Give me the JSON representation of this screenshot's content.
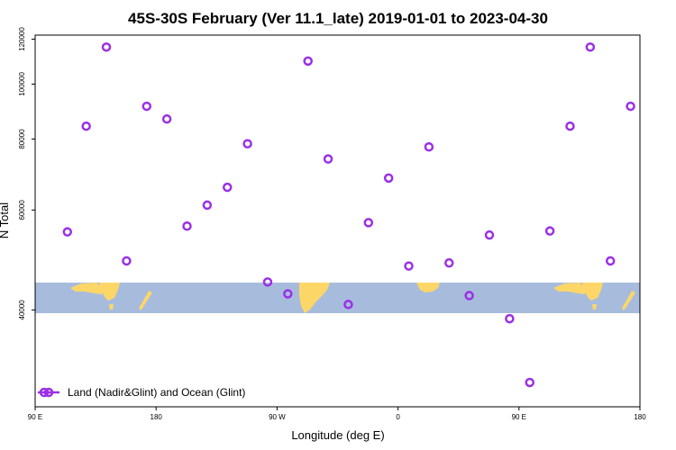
{
  "chart_data": {
    "type": "scatter",
    "title": "45S-30S February (Ver 11.1_late)   2019-01-01 to 2023-04-30",
    "xlabel": "Longitude (deg E)",
    "ylabel": "N Total",
    "x_ticks": [
      {
        "value": 90,
        "label": "90 E"
      },
      {
        "value": 180,
        "label": "180"
      },
      {
        "value": 270,
        "label": "90 W"
      },
      {
        "value": 360,
        "label": "0"
      },
      {
        "value": 450,
        "label": "90 E"
      },
      {
        "value": 540,
        "label": "180"
      }
    ],
    "y_ticks": [
      {
        "value": 40000,
        "label": "40000"
      },
      {
        "value": 60000,
        "label": "60000"
      },
      {
        "value": 80000,
        "label": "80000"
      },
      {
        "value": 100000,
        "label": "100000"
      },
      {
        "value": 120000,
        "label": "120000"
      }
    ],
    "xlim": [
      90,
      540
    ],
    "ylim": [
      27000,
      122000
    ],
    "y_scale": "log",
    "grid": false,
    "legend_position": "bottom-left",
    "series": [
      {
        "name": "Land (Nadir&Glint) and Ocean (Glint)",
        "color": "#9b30e6",
        "marker": "open-circle",
        "x": [
          114,
          128,
          143,
          158,
          173,
          188,
          203,
          218,
          233,
          248,
          263,
          278,
          293,
          308,
          323,
          338,
          353,
          368,
          383,
          398,
          413,
          428,
          443,
          458,
          473,
          488,
          503,
          518,
          533
        ],
        "y": [
          54900,
          84300,
          116200,
          48800,
          91400,
          86800,
          56200,
          61200,
          65800,
          78500,
          44800,
          42700,
          109800,
          73800,
          40900,
          57000,
          68300,
          47800,
          77500,
          48400,
          42400,
          54200,
          38600,
          29800,
          55100,
          84300,
          116200,
          48800,
          91400
        ]
      }
    ]
  }
}
